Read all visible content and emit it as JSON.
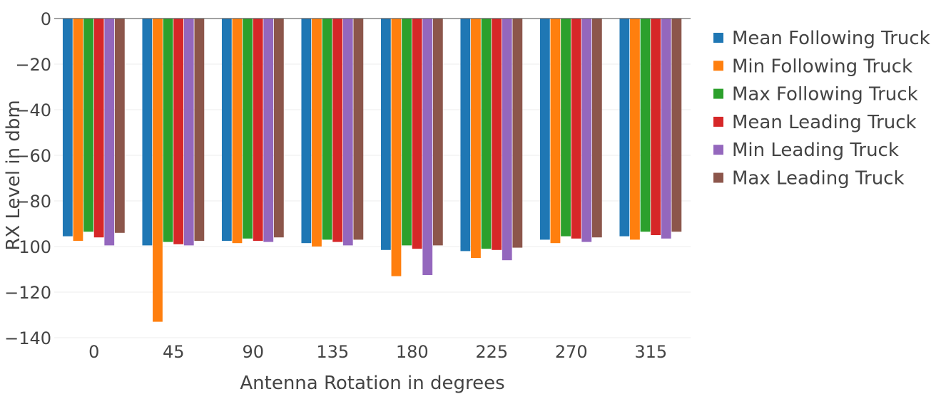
{
  "chart_data": {
    "type": "bar",
    "title": "",
    "xlabel": "Antenna Rotation in degrees",
    "ylabel": "RX Level in dbm",
    "categories": [
      "0",
      "45",
      "90",
      "135",
      "180",
      "225",
      "270",
      "315"
    ],
    "ylim": [
      -140,
      0
    ],
    "yticks": [
      0,
      -20,
      -40,
      -60,
      -80,
      -100,
      -120,
      -140
    ],
    "ytick_labels": [
      "0",
      "−20",
      "−40",
      "−60",
      "−80",
      "−100",
      "−120",
      "−140"
    ],
    "grid": true,
    "legend_position": "right",
    "series": [
      {
        "name": "Mean Following Truck",
        "color": "#1f77b4",
        "values": [
          -95.5,
          -99.5,
          -97.5,
          -98.5,
          -101.5,
          -102,
          -97,
          -95.5
        ]
      },
      {
        "name": "Min Following Truck",
        "color": "#ff7f0e",
        "values": [
          -97.5,
          -133,
          -98.5,
          -100,
          -113,
          -105,
          -98.5,
          -97
        ]
      },
      {
        "name": "Max Following Truck",
        "color": "#2ca02c",
        "values": [
          -93.5,
          -98,
          -96.5,
          -97,
          -99.5,
          -101,
          -95.5,
          -93.5
        ]
      },
      {
        "name": "Mean Leading Truck",
        "color": "#d62728",
        "values": [
          -96,
          -99,
          -97.5,
          -98,
          -101,
          -101.5,
          -96.5,
          -95
        ]
      },
      {
        "name": "Min Leading Truck",
        "color": "#9467bd",
        "values": [
          -99.5,
          -99.5,
          -98,
          -99.5,
          -112.5,
          -106,
          -98,
          -96.5
        ]
      },
      {
        "name": "Max Leading Truck",
        "color": "#8c564b",
        "values": [
          -94,
          -97.5,
          -96,
          -97,
          -99.5,
          -100.5,
          -96,
          -93.5
        ]
      }
    ]
  }
}
